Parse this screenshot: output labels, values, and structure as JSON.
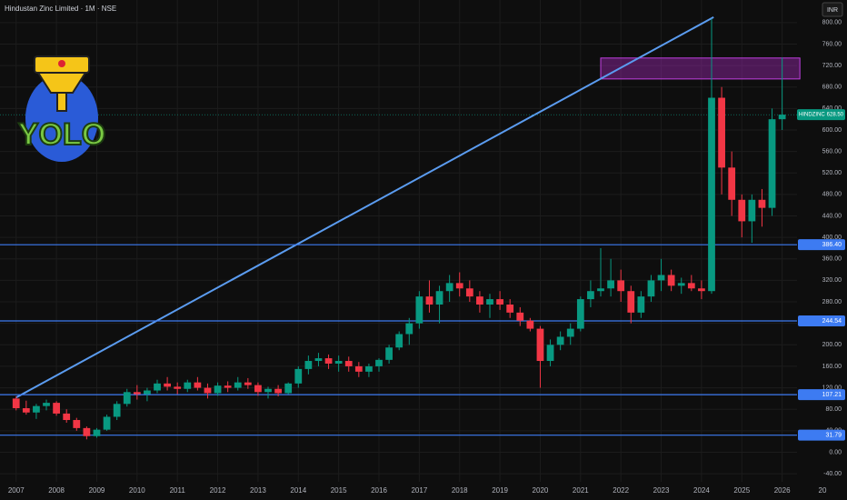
{
  "chart_data": {
    "type": "candlestick",
    "title": "Hindustan Zinc Limited · 1M · NSE",
    "currency": "INR",
    "logo_text": "YOLO",
    "x": [
      2007.0,
      2007.25,
      2007.5,
      2007.75,
      2008.0,
      2008.25,
      2008.5,
      2008.75,
      2009.0,
      2009.25,
      2009.5,
      2009.75,
      2010.0,
      2010.25,
      2010.5,
      2010.75,
      2011.0,
      2011.25,
      2011.5,
      2011.75,
      2012.0,
      2012.25,
      2012.5,
      2012.75,
      2013.0,
      2013.25,
      2013.5,
      2013.75,
      2014.0,
      2014.25,
      2014.5,
      2014.75,
      2015.0,
      2015.25,
      2015.5,
      2015.75,
      2016.0,
      2016.25,
      2016.5,
      2016.75,
      2017.0,
      2017.25,
      2017.5,
      2017.75,
      2018.0,
      2018.25,
      2018.5,
      2018.75,
      2019.0,
      2019.25,
      2019.5,
      2019.75,
      2020.0,
      2020.25,
      2020.5,
      2020.75,
      2021.0,
      2021.25,
      2021.5,
      2021.75,
      2022.0,
      2022.25,
      2022.5,
      2022.75,
      2023.0,
      2023.25,
      2023.5,
      2023.75,
      2024.0,
      2024.25,
      2024.5,
      2024.75,
      2025.0,
      2025.25,
      2025.5,
      2025.75,
      2026.0
    ],
    "open": [
      100,
      82,
      74,
      86,
      92,
      72,
      60,
      45,
      30,
      42,
      66,
      90,
      112,
      108,
      115,
      128,
      122,
      118,
      130,
      120,
      110,
      124,
      120,
      130,
      125,
      112,
      118,
      110,
      128,
      155,
      170,
      175,
      165,
      170,
      160,
      150,
      160,
      172,
      195,
      220,
      240,
      290,
      275,
      300,
      315,
      305,
      290,
      275,
      285,
      275,
      260,
      245,
      230,
      170,
      200,
      215,
      230,
      285,
      300,
      305,
      320,
      300,
      260,
      290,
      320,
      330,
      310,
      315,
      305,
      300,
      660,
      530,
      470,
      430,
      470,
      455,
      620
    ],
    "high": [
      104,
      96,
      90,
      98,
      95,
      80,
      64,
      48,
      45,
      70,
      95,
      118,
      125,
      120,
      135,
      140,
      130,
      135,
      140,
      128,
      130,
      132,
      140,
      138,
      130,
      122,
      125,
      130,
      160,
      180,
      185,
      182,
      180,
      178,
      168,
      165,
      175,
      200,
      225,
      250,
      300,
      320,
      310,
      330,
      335,
      320,
      300,
      295,
      300,
      285,
      270,
      250,
      235,
      210,
      225,
      240,
      290,
      320,
      380,
      360,
      340,
      310,
      300,
      330,
      360,
      340,
      325,
      330,
      320,
      807,
      680,
      560,
      480,
      480,
      490,
      640,
      735
    ],
    "low": [
      78,
      70,
      62,
      78,
      68,
      55,
      40,
      24,
      27,
      40,
      60,
      85,
      98,
      95,
      110,
      115,
      108,
      112,
      115,
      100,
      105,
      112,
      115,
      118,
      105,
      100,
      104,
      108,
      120,
      145,
      160,
      155,
      150,
      150,
      140,
      140,
      150,
      165,
      190,
      200,
      230,
      260,
      240,
      280,
      290,
      280,
      260,
      250,
      265,
      250,
      235,
      225,
      120,
      160,
      190,
      200,
      225,
      270,
      290,
      290,
      280,
      240,
      250,
      280,
      300,
      300,
      295,
      300,
      285,
      295,
      480,
      440,
      400,
      390,
      420,
      440,
      600
    ],
    "close": [
      82,
      74,
      86,
      92,
      72,
      60,
      45,
      30,
      42,
      66,
      90,
      112,
      108,
      115,
      128,
      122,
      118,
      130,
      120,
      110,
      124,
      120,
      130,
      125,
      112,
      118,
      110,
      128,
      155,
      170,
      175,
      165,
      170,
      160,
      150,
      160,
      172,
      195,
      220,
      240,
      290,
      275,
      300,
      315,
      305,
      290,
      275,
      285,
      275,
      260,
      245,
      230,
      170,
      200,
      215,
      230,
      285,
      300,
      305,
      320,
      300,
      260,
      290,
      320,
      330,
      310,
      315,
      305,
      300,
      660,
      530,
      470,
      430,
      470,
      455,
      620,
      628.5
    ],
    "up_color": "#089981",
    "down_color": "#f23645",
    "xlim": [
      2006.6,
      2027.0
    ],
    "xticks": [
      2007,
      2008,
      2009,
      2010,
      2011,
      2012,
      2013,
      2014,
      2015,
      2016,
      2017,
      2018,
      2019,
      2020,
      2021,
      2022,
      2023,
      2024,
      2025,
      2026,
      {
        "value": 2027,
        "label": "20"
      }
    ],
    "ylim": [
      -72,
      842
    ],
    "yticks": [
      {
        "value": -40,
        "label": "-40.00"
      },
      {
        "value": 0,
        "label": "0.00"
      },
      {
        "value": 40,
        "label": "40.00"
      },
      {
        "value": 80,
        "label": "80.00"
      },
      {
        "value": 120,
        "label": "120.00"
      },
      {
        "value": 160,
        "label": "160.00"
      },
      {
        "value": 200,
        "label": "200.00"
      },
      {
        "value": 240,
        "label": "240.00"
      },
      {
        "value": 280,
        "label": "280.00"
      },
      {
        "value": 320,
        "label": "320.00"
      },
      {
        "value": 360,
        "label": "360.00"
      },
      {
        "value": 400,
        "label": "400.00"
      },
      {
        "value": 440,
        "label": "440.00"
      },
      {
        "value": 480,
        "label": "480.00"
      },
      {
        "value": 520,
        "label": "520.00"
      },
      {
        "value": 560,
        "label": "560.00"
      },
      {
        "value": 600,
        "label": "600.00"
      },
      {
        "value": 640,
        "label": "640.00"
      },
      {
        "value": 680,
        "label": "680.00"
      },
      {
        "value": 720,
        "label": "720.00"
      },
      {
        "value": 760,
        "label": "760.00"
      },
      {
        "value": 800,
        "label": "800.00"
      }
    ],
    "grid": true,
    "levels": {
      "values": [
        386.4,
        244.54,
        107.21,
        31.79
      ],
      "value_labels": [
        "386.40",
        "244.54",
        "107.21",
        "31.79"
      ],
      "color": "#3d7bf2"
    },
    "trend_line": {
      "x": [
        2007.0,
        2024.3
      ],
      "y": [
        102,
        810
      ],
      "color": "#5b9cf0"
    },
    "zone": {
      "x": [
        2021.5,
        2026.44
      ],
      "y": [
        695,
        734
      ],
      "color": "#9c27b0"
    },
    "last_price": {
      "name": "HINDZINC",
      "value": 628.5,
      "label": "628.50",
      "color": "#089981"
    }
  }
}
